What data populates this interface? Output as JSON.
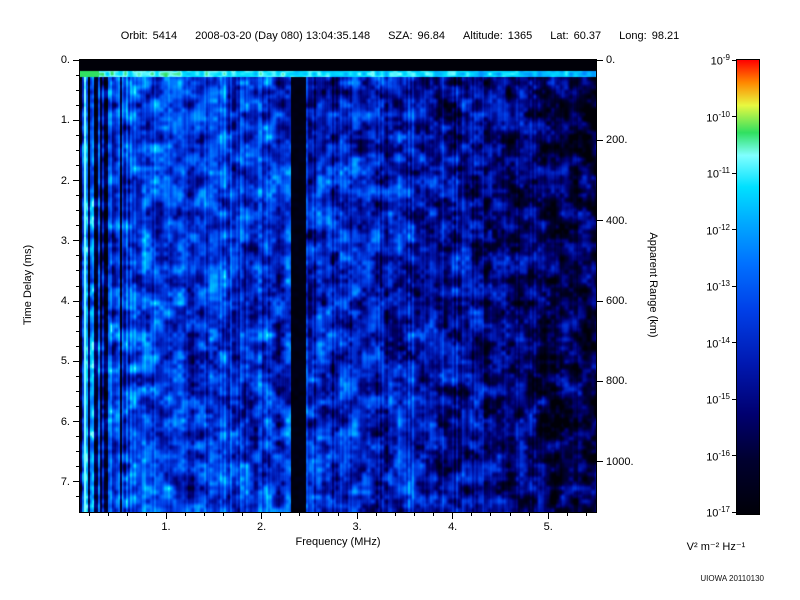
{
  "header": {
    "orbit_label": "Orbit:",
    "orbit_value": "5414",
    "datetime": "2008-03-20 (Day 080) 13:04:35.148",
    "sza_label": "SZA:",
    "sza_value": "96.84",
    "altitude_label": "Altitude:",
    "altitude_value": "1365",
    "lat_label": "Lat:",
    "lat_value": "60.37",
    "long_label": "Long:",
    "long_value": "98.21"
  },
  "chart_data": {
    "type": "heatmap",
    "description": "Radar sounder ionogram (spectrogram): received spectral density vs sounding frequency and echo time delay. Bright horizontal transmit line near 0.25 ms, bright/dark vertical plasma-harmonic stripes below 0.55 MHz, black receiver gap band near 2.3-2.45 MHz, blue noise background fading to black patches above ~4 MHz.",
    "xlabel": "Frequency (MHz)",
    "ylabel": "Time Delay (ms)",
    "y2label": "Apparent Range (km)",
    "x_range_mhz": [
      0.1,
      5.5
    ],
    "y_range_ms": [
      0.0,
      7.5
    ],
    "apparent_range_km_per_ms": 150,
    "x_ticks": {
      "values": [
        1,
        2,
        3,
        4,
        5
      ],
      "labels": [
        "1.",
        "2.",
        "3.",
        "4.",
        "5."
      ],
      "minor_step": 0.2
    },
    "y_ticks": {
      "values": [
        0,
        1,
        2,
        3,
        4,
        5,
        6,
        7
      ],
      "labels": [
        "0.",
        "1.",
        "2.",
        "3.",
        "4.",
        "5.",
        "6.",
        "7."
      ],
      "minor_step": 0.25
    },
    "y2_ticks": {
      "values_km": [
        0,
        200,
        400,
        600,
        800,
        1000
      ],
      "labels": [
        "0.",
        "200.",
        "400.",
        "600.",
        "800.",
        "1000."
      ]
    },
    "colorbar": {
      "scale": "log",
      "max": "1e-9",
      "min": "1e-17",
      "base": "10",
      "tick_exponents": [
        "-9",
        "-10",
        "-11",
        "-12",
        "-13",
        "-14",
        "-15",
        "-16",
        "-17"
      ],
      "units": "V² m⁻² Hz⁻¹"
    },
    "colormap_stops": [
      [
        0.0,
        "#000008"
      ],
      [
        0.12,
        "#000030"
      ],
      [
        0.22,
        "#000070"
      ],
      [
        0.33,
        "#0018b0"
      ],
      [
        0.45,
        "#0040e8"
      ],
      [
        0.55,
        "#0070ff"
      ],
      [
        0.64,
        "#00a8ff"
      ],
      [
        0.72,
        "#00e0ff"
      ],
      [
        0.79,
        "#80ffff"
      ],
      [
        0.84,
        "#30e060"
      ],
      [
        0.9,
        "#e8f840"
      ],
      [
        0.95,
        "#ff8800"
      ],
      [
        1.0,
        "#ff0000"
      ]
    ],
    "features": {
      "top_black_band_ms": 0.19,
      "transmit_line_ms": [
        0.19,
        0.29
      ],
      "plasma_stripe_region_max_mhz": 0.55,
      "receiver_gap_mhz": [
        2.31,
        2.46
      ],
      "noise_seed": 77
    }
  },
  "credit": "UIOWA 20110130"
}
